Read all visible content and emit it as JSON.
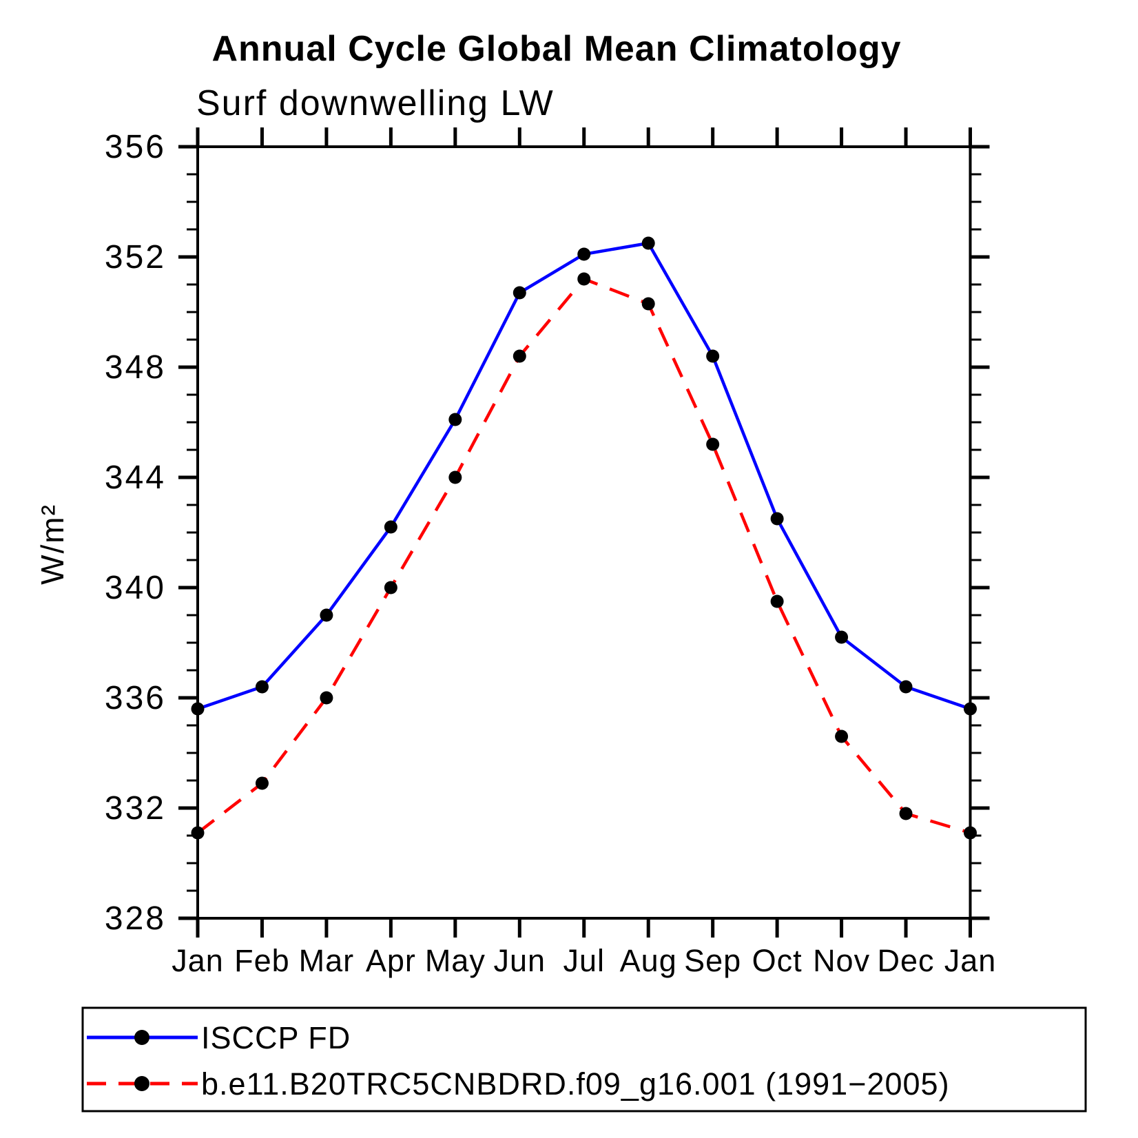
{
  "chart_data": {
    "type": "line",
    "title": "Annual Cycle Global Mean Climatology",
    "subtitle": "Surf downwelling LW",
    "xlabel": "",
    "ylabel": "W/m²",
    "categories": [
      "Jan",
      "Feb",
      "Mar",
      "Apr",
      "May",
      "Jun",
      "Jul",
      "Aug",
      "Sep",
      "Oct",
      "Nov",
      "Dec",
      "Jan"
    ],
    "ylim": [
      328,
      356
    ],
    "ytick_major_step": 4,
    "ytick_minor_step": 1,
    "ytick_labels": [
      "328",
      "332",
      "336",
      "340",
      "344",
      "348",
      "352",
      "356"
    ],
    "grid": false,
    "legend_position": "bottom",
    "marker_color": "#000000",
    "frame_color": "#000000",
    "series": [
      {
        "name": "ISCCP FD",
        "color": "#0000ff",
        "style": "solid",
        "values": [
          335.6,
          336.4,
          339.0,
          342.2,
          346.1,
          350.7,
          352.1,
          352.5,
          348.4,
          342.5,
          338.2,
          336.4,
          335.6
        ]
      },
      {
        "name": "b.e11.B20TRC5CNBDRD.f09_g16.001 (1991−2005)",
        "color": "#ff0000",
        "style": "dashed",
        "values": [
          331.1,
          332.9,
          336.0,
          340.0,
          344.0,
          348.4,
          351.2,
          350.3,
          345.2,
          339.5,
          334.6,
          331.8,
          331.1
        ]
      }
    ]
  }
}
